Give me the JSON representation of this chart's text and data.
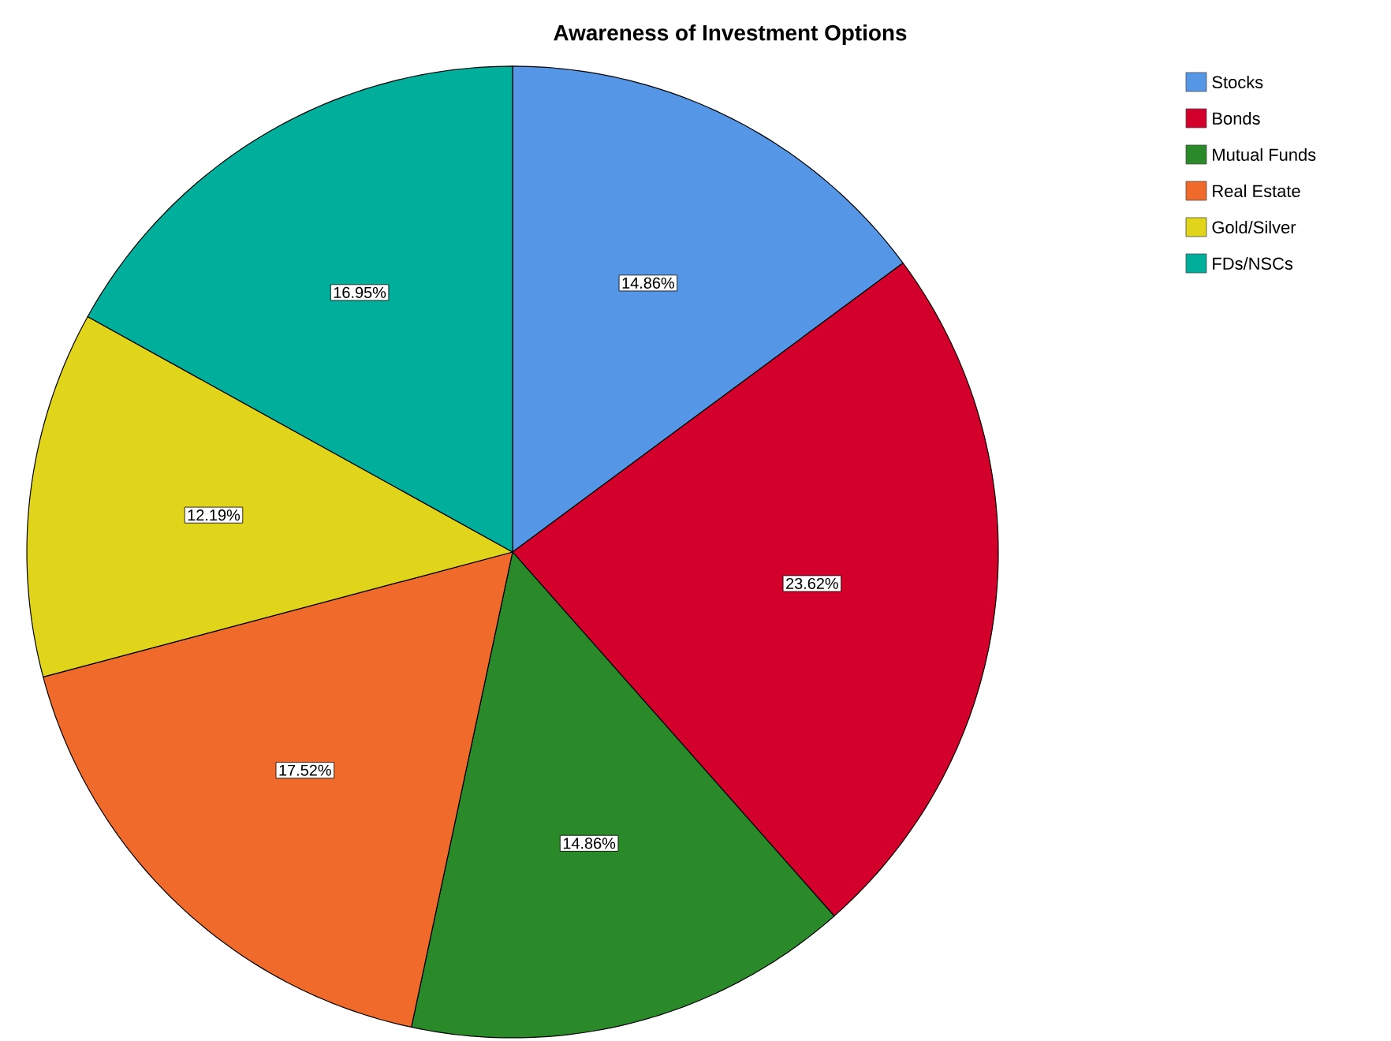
{
  "chart_data": {
    "type": "pie",
    "title": "Awareness of Investment Options",
    "categories": [
      "Stocks",
      "Bonds",
      "Mutual Funds",
      "Real Estate",
      "Gold/Silver",
      "FDs/NSCs"
    ],
    "values": [
      14.86,
      23.62,
      14.86,
      17.52,
      12.19,
      16.95
    ],
    "value_labels": [
      "14.86%",
      "23.62%",
      "14.86%",
      "17.52%",
      "12.19%",
      "16.95%"
    ],
    "colors": [
      "#5596e6",
      "#d3002c",
      "#2a8a2a",
      "#f06a2b",
      "#e0d51a",
      "#00ae9c"
    ],
    "legend": "top right"
  }
}
